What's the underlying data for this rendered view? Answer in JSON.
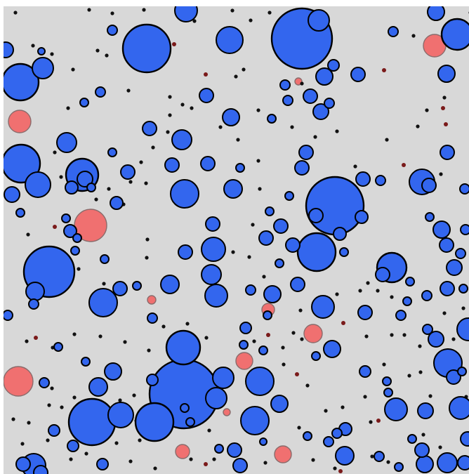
{
  "colors": {
    "background": "#d8d8d8",
    "player_cell": "#3366ee",
    "player_outline": "#000000",
    "food_pellet": "#f07070",
    "virus_dot": "#111111",
    "spore_dark": "#7a1a1a"
  }
}
